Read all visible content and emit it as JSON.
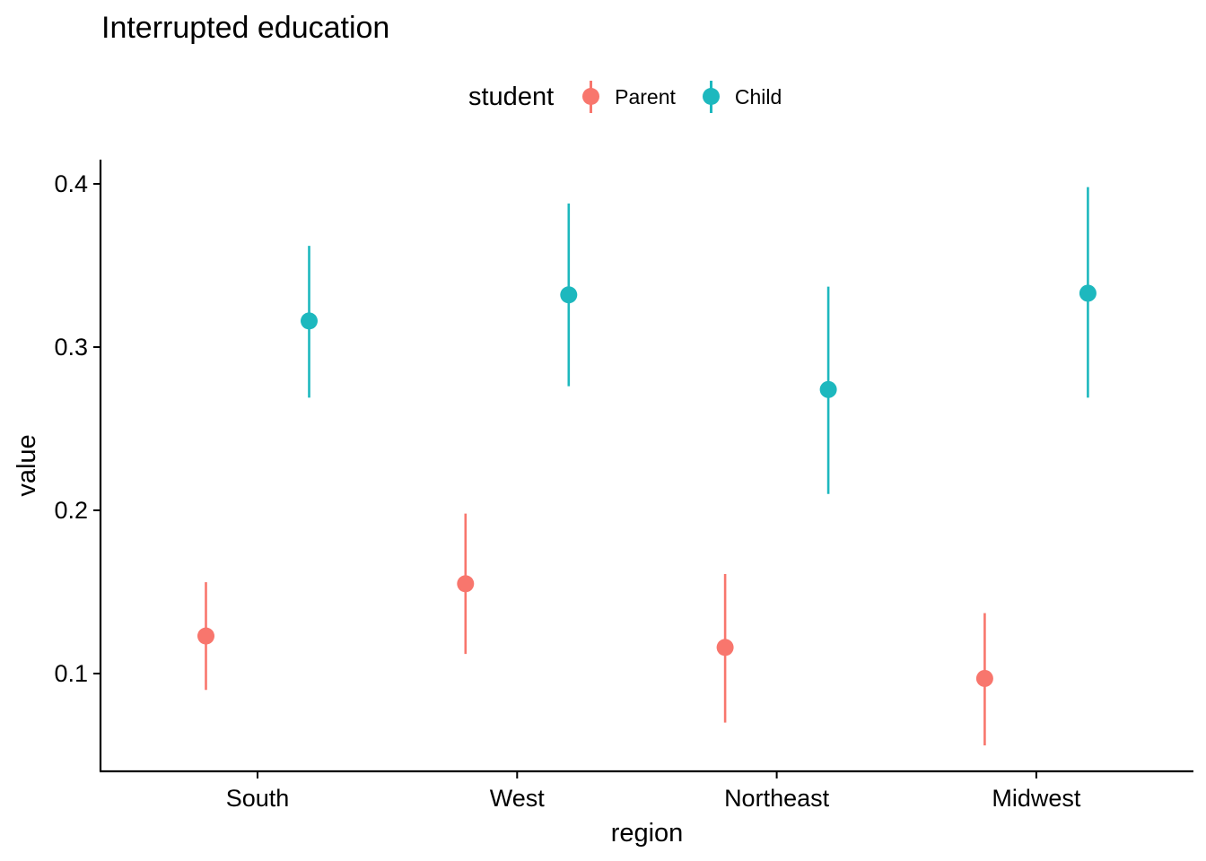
{
  "chart_data": {
    "type": "scatter",
    "title": "Interrupted education",
    "xlabel": "region",
    "ylabel": "value",
    "categories": [
      "South",
      "West",
      "Northeast",
      "Midwest"
    ],
    "ylim": [
      0.045,
      0.415
    ],
    "yticks": [
      0.1,
      0.2,
      0.3,
      0.4
    ],
    "ytick_labels": [
      "0.1",
      "0.2",
      "0.3",
      "0.4"
    ],
    "grid": false,
    "legend": {
      "title": "student",
      "placement": "top"
    },
    "series": [
      {
        "name": "Parent",
        "color": "#F8766D",
        "values": [
          0.123,
          0.155,
          0.116,
          0.097
        ],
        "lower": [
          0.09,
          0.112,
          0.07,
          0.056
        ],
        "upper": [
          0.156,
          0.198,
          0.161,
          0.137
        ]
      },
      {
        "name": "Child",
        "color": "#1DB8BE",
        "values": [
          0.316,
          0.332,
          0.274,
          0.333
        ],
        "lower": [
          0.269,
          0.276,
          0.21,
          0.269
        ],
        "upper": [
          0.362,
          0.388,
          0.337,
          0.398
        ]
      }
    ]
  }
}
